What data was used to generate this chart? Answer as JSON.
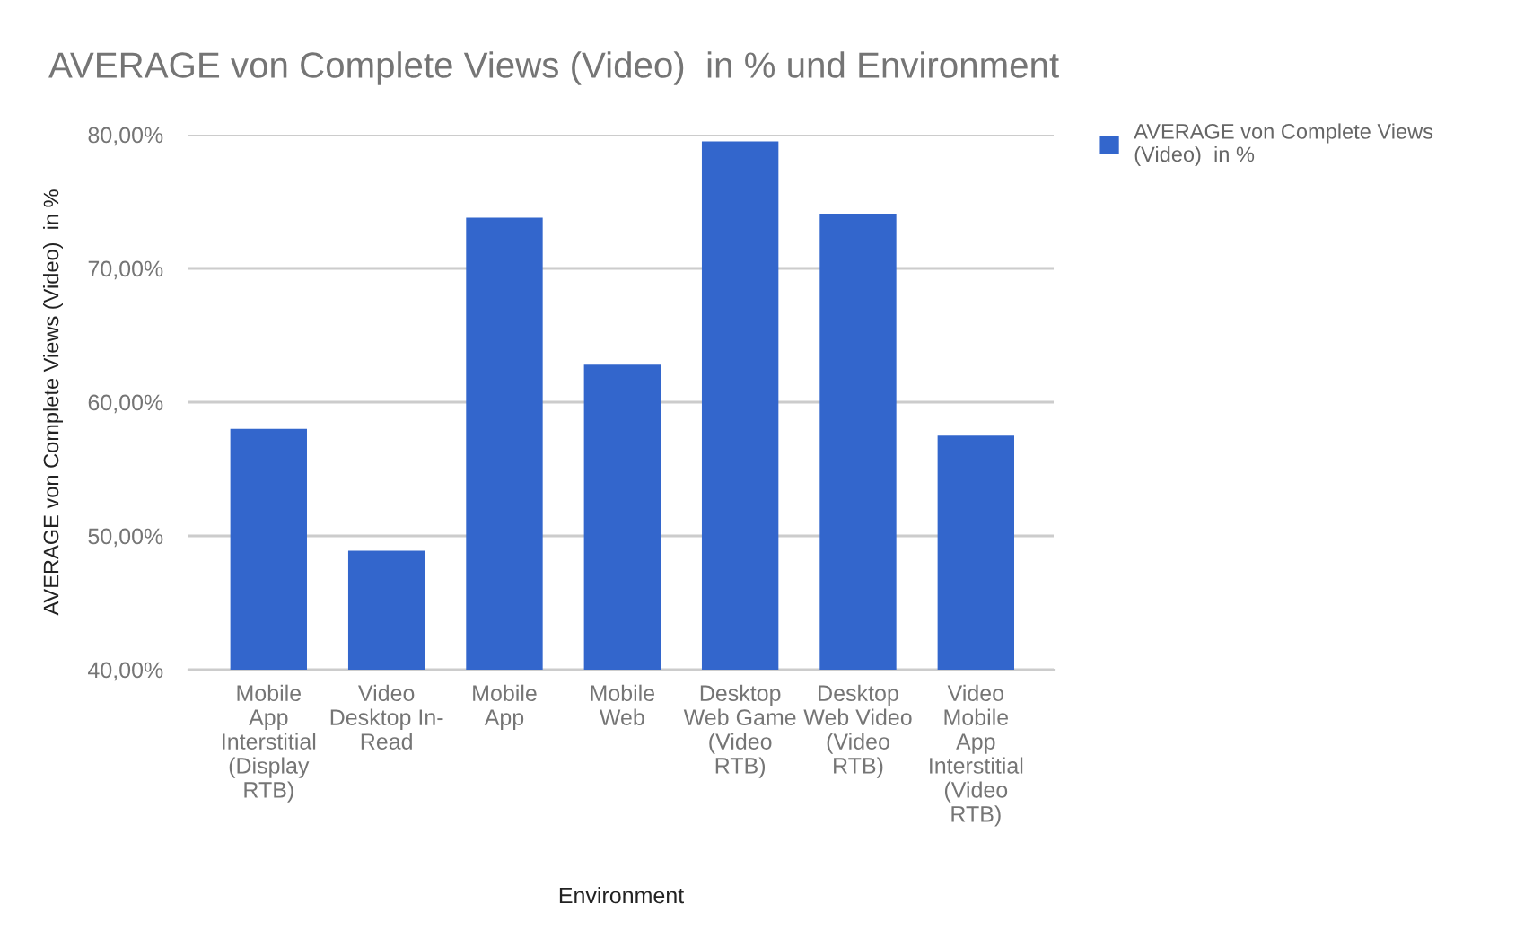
{
  "chart_data": {
    "type": "bar",
    "title": "AVERAGE von Complete Views (Video)  in % und Environment",
    "xlabel": "Environment",
    "ylabel": "AVERAGE von Complete Views (Video)  in %",
    "categories": [
      "Mobile\nApp\nInterstitial\n(Display\nRTB)",
      "Video\nDesktop In-\nRead",
      "Mobile\nApp",
      "Mobile\nWeb",
      "Desktop\nWeb Game\n(Video\nRTB)",
      "Desktop\nWeb Video\n(Video\nRTB)",
      "Video\nMobile\nApp\nInterstitial\n(Video\nRTB)"
    ],
    "series": [
      {
        "name": "AVERAGE von Complete Views\n(Video)  in %",
        "color": "#3366cc",
        "values": [
          58.0,
          48.9,
          73.8,
          62.8,
          79.5,
          74.1,
          57.5
        ]
      }
    ],
    "ylim": [
      40,
      80
    ],
    "yticks": [
      {
        "value": 40,
        "label": "40,00%"
      },
      {
        "value": 50,
        "label": "50,00%"
      },
      {
        "value": 60,
        "label": "60,00%"
      },
      {
        "value": 70,
        "label": "70,00%"
      },
      {
        "value": 80,
        "label": "80,00%"
      }
    ],
    "grid": "y",
    "legend": "top right"
  }
}
